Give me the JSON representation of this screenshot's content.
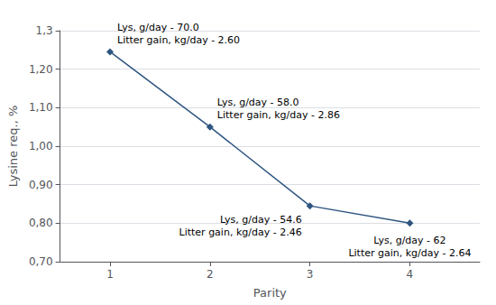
{
  "chart_data": {
    "type": "line",
    "x": [
      1,
      2,
      3,
      4
    ],
    "values": [
      1.245,
      1.05,
      0.845,
      0.8
    ],
    "color": "#2E5580",
    "marker": "diamond",
    "x_label": "Parity",
    "y_label": "Lysine req., %",
    "xlim": [
      0.5,
      4.7
    ],
    "xticks": [
      1,
      2,
      3,
      4
    ],
    "ylim": [
      0.7,
      1.3
    ],
    "yticks": [
      {
        "value": 0.7,
        "label": "0,70"
      },
      {
        "value": 0.8,
        "label": "0,80"
      },
      {
        "value": 0.9,
        "label": "0,90"
      },
      {
        "value": 1.0,
        "label": "1,00"
      },
      {
        "value": 1.1,
        "label": "1,10"
      },
      {
        "value": 1.2,
        "label": "1,20"
      },
      {
        "value": 1.3,
        "label": "1,3"
      }
    ],
    "grid": true,
    "annotations": [
      {
        "x": 1,
        "y": 1.245,
        "text": "Lys, g/day - 70.0\nLitter gain, kg/day - 2.60"
      },
      {
        "x": 2,
        "y": 1.05,
        "text": "Lys, g/day - 58.0\nLitter gain, kg/day - 2.86"
      },
      {
        "x": 3,
        "y": 0.845,
        "text": "Lys, g/day - 54.6\nLitter gain, kg/day - 2.46"
      },
      {
        "x": 4,
        "y": 0.8,
        "text": "Lys, g/day - 62\nLitter gain, kg/day - 2.64"
      }
    ]
  }
}
